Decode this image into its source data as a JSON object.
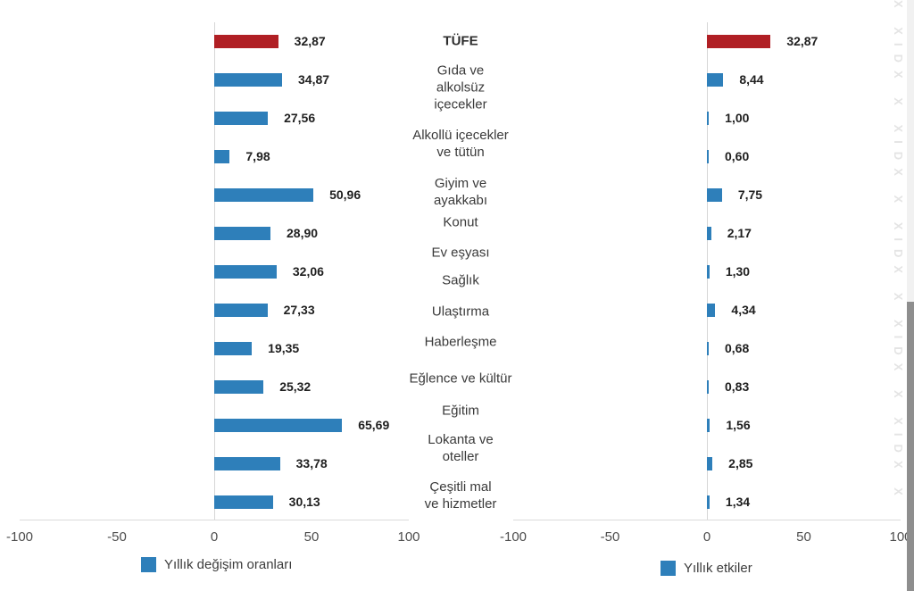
{
  "watermark": {
    "text": "X XIDX X XIDX X XIDX X XIDX X XIDX X"
  },
  "chart_data": {
    "type": "bar",
    "orientation": "horizontal",
    "title": "",
    "categories": [
      "TÜFE",
      "Gıda ve alkolsüz içecekler",
      "Alkollü içecekler ve tütün",
      "Giyim ve ayakkabı",
      "Konut",
      "Ev eşyası",
      "Sağlık",
      "Ulaştırma",
      "Haberleşme",
      "Eğlence ve kültür",
      "Eğitim",
      "Lokanta ve oteller",
      "Çeşitli mal ve hizmetler"
    ],
    "series": [
      {
        "name": "Yıllık değişim oranları",
        "values": [
          32.87,
          34.87,
          27.56,
          7.98,
          50.96,
          28.9,
          32.06,
          27.33,
          19.35,
          25.32,
          65.69,
          33.78,
          30.13
        ]
      },
      {
        "name": "Yıllık etkiler",
        "values": [
          32.87,
          8.44,
          1.0,
          0.6,
          7.75,
          2.17,
          1.3,
          4.34,
          0.68,
          0.83,
          1.56,
          2.85,
          1.34
        ]
      }
    ],
    "value_labels": [
      [
        "32,87",
        "34,87",
        "27,56",
        "7,98",
        "50,96",
        "28,90",
        "32,06",
        "27,33",
        "19,35",
        "25,32",
        "65,69",
        "33,78",
        "30,13"
      ],
      [
        "32,87",
        "8,44",
        "1,00",
        "0,60",
        "7,75",
        "2,17",
        "1,30",
        "4,34",
        "0,68",
        "0,83",
        "1,56",
        "2,85",
        "1,34"
      ]
    ],
    "highlight_category": "TÜFE",
    "highlight_color": "#b01f24",
    "bar_color": "#2e7fba",
    "xlim": [
      -100,
      100
    ],
    "x_ticks": [
      "-100",
      "-50",
      "0",
      "50",
      "100"
    ],
    "x_tick_values": [
      -100,
      -50,
      0,
      50,
      100
    ],
    "grid": false,
    "legend_position": "bottom"
  }
}
